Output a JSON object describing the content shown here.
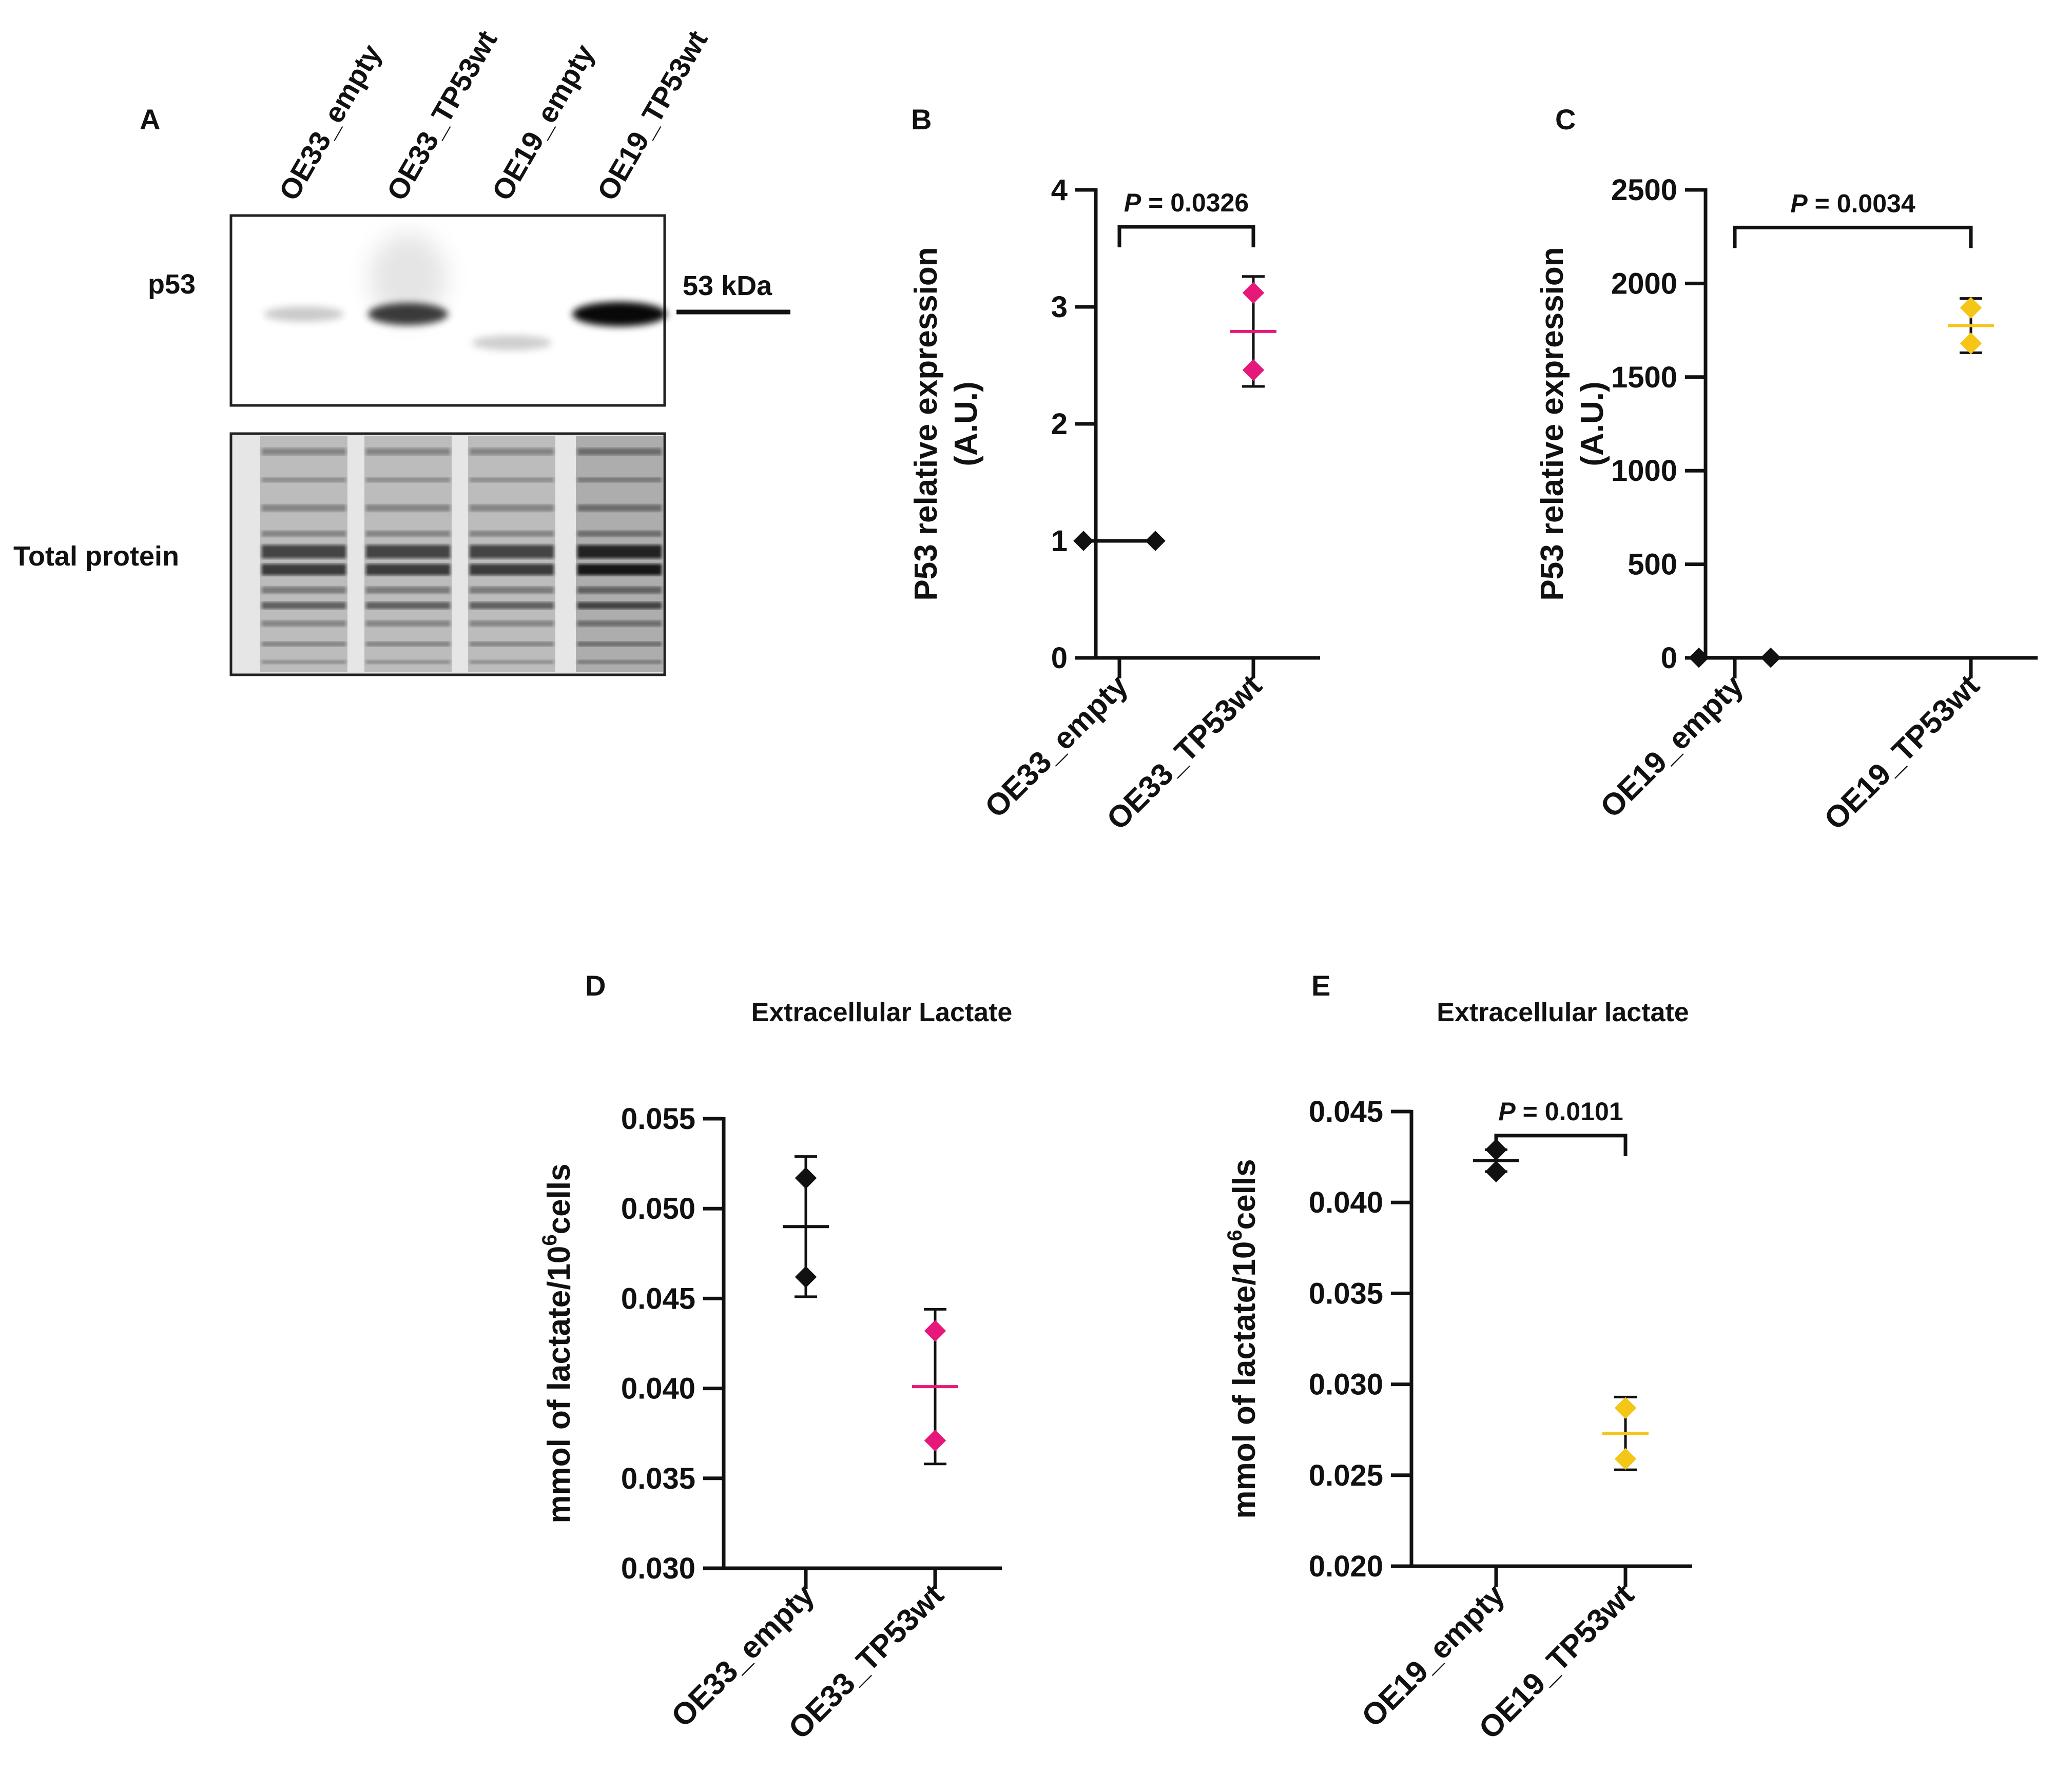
{
  "colors": {
    "black": "#111111",
    "magenta": "#e6197a",
    "yellow": "#f5c518"
  },
  "panel_a": {
    "letter": "A",
    "lanes": [
      "OE33_empty",
      "OE33_TP53wt",
      "OE19_empty",
      "OE19_TP53wt"
    ],
    "band_intensity": [
      0.1,
      0.75,
      0.08,
      1.0
    ],
    "p53_label": "p53",
    "marker_label": "53 kDa",
    "total_label": "Total protein"
  },
  "chart_data": [
    {
      "panel": "B",
      "type": "scatter",
      "title": "",
      "ylabel_line1": "P53 relative expression",
      "ylabel_line2": "(A.U.)",
      "categories": [
        "OE33_empty",
        "OE33_TP53wt"
      ],
      "ylim": [
        0,
        4
      ],
      "yticks": [
        "0",
        "1",
        "2",
        "3",
        "4"
      ],
      "ytick_values": [
        0,
        1,
        2,
        3,
        4
      ],
      "series": [
        {
          "name": "OE33_empty",
          "color": "#111111",
          "points": [
            1.0,
            1.0
          ],
          "mean": 1.0,
          "err": 0.0
        },
        {
          "name": "OE33_TP53wt",
          "color": "#e6197a",
          "points": [
            3.12,
            2.46
          ],
          "mean": 2.79,
          "err": 0.47
        }
      ],
      "pvalue": {
        "prefix": "P",
        "text": " = 0.0326",
        "y": 3.75
      }
    },
    {
      "panel": "C",
      "type": "scatter",
      "title": "",
      "ylabel_line1": "P53 relative expression",
      "ylabel_line2": "(A.U.)",
      "categories": [
        "OE19_empty",
        "OE19_TP53wt"
      ],
      "ylim": [
        0,
        2500
      ],
      "yticks": [
        "0",
        "500",
        "1000",
        "1500",
        "2000",
        "2500"
      ],
      "ytick_values": [
        0,
        500,
        1000,
        1500,
        2000,
        2500
      ],
      "series": [
        {
          "name": "OE19_empty",
          "color": "#111111",
          "points": [
            1,
            1
          ],
          "mean": 1,
          "err": 0
        },
        {
          "name": "OE19_TP53wt",
          "color": "#f5c518",
          "points": [
            1870,
            1680
          ],
          "mean": 1775,
          "err": 145
        }
      ],
      "pvalue": {
        "prefix": "P",
        "text": " = 0.0034",
        "y": 2340
      }
    },
    {
      "panel": "D",
      "type": "scatter",
      "title": "Extracellular Lactate",
      "ylabel_prefix": "mmol of lactate/10",
      "ylabel_sup": "6",
      "ylabel_suffix": "cells",
      "categories": [
        "OE33_empty",
        "OE33_TP53wt"
      ],
      "ylim": [
        0.03,
        0.055
      ],
      "yticks": [
        "0.030",
        "0.035",
        "0.040",
        "0.045",
        "0.050",
        "0.055"
      ],
      "ytick_values": [
        0.03,
        0.035,
        0.04,
        0.045,
        0.05,
        0.055
      ],
      "series": [
        {
          "name": "OE33_empty",
          "color": "#111111",
          "points": [
            0.0517,
            0.0462
          ],
          "mean": 0.049,
          "err": 0.0039
        },
        {
          "name": "OE33_TP53wt",
          "color": "#e6197a",
          "points": [
            0.0432,
            0.0371
          ],
          "mean": 0.0401,
          "err": 0.0043
        }
      ]
    },
    {
      "panel": "E",
      "type": "scatter",
      "title": "Extracellular lactate",
      "ylabel_prefix": "mmol of lactate/10",
      "ylabel_sup": "6",
      "ylabel_suffix": "cells",
      "categories": [
        "OE19_empty",
        "OE19_TP53wt"
      ],
      "ylim": [
        0.02,
        0.045
      ],
      "yticks": [
        "0.020",
        "0.025",
        "0.030",
        "0.035",
        "0.040",
        "0.045"
      ],
      "ytick_values": [
        0.02,
        0.025,
        0.03,
        0.035,
        0.04,
        0.045
      ],
      "series": [
        {
          "name": "OE19_empty",
          "color": "#111111",
          "points": [
            0.0429,
            0.0417
          ],
          "mean": 0.0423,
          "err": 0.0006
        },
        {
          "name": "OE19_TP53wt",
          "color": "#f5c518",
          "points": [
            0.0287,
            0.0259
          ],
          "mean": 0.0273,
          "err": 0.002
        }
      ],
      "pvalue": {
        "prefix": "P",
        "text": " = 0.0101",
        "y": 0.0441
      }
    }
  ]
}
